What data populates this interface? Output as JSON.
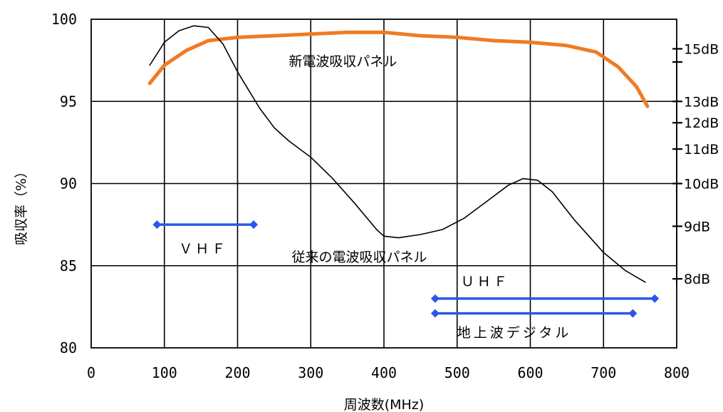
{
  "chart_data": {
    "type": "line",
    "title": "",
    "xlabel": "周波数(MHz)",
    "ylabel": "吸収率（%）",
    "xlim": [
      0,
      800
    ],
    "ylim": [
      80,
      100
    ],
    "x_ticks": [
      "0",
      "100",
      "200",
      "300",
      "400",
      "500",
      "600",
      "700",
      "800"
    ],
    "y_ticks": [
      "80",
      "85",
      "90",
      "95",
      "100"
    ],
    "grid": true,
    "series": [
      {
        "name": "新電波吸収パネル",
        "color": "#f07b22",
        "points": [
          [
            80,
            96.1
          ],
          [
            100,
            97.2
          ],
          [
            130,
            98.1
          ],
          [
            160,
            98.7
          ],
          [
            200,
            98.9
          ],
          [
            250,
            99.0
          ],
          [
            300,
            99.1
          ],
          [
            350,
            99.2
          ],
          [
            400,
            99.2
          ],
          [
            450,
            99.0
          ],
          [
            500,
            98.9
          ],
          [
            550,
            98.7
          ],
          [
            600,
            98.6
          ],
          [
            650,
            98.4
          ],
          [
            690,
            98.0
          ],
          [
            720,
            97.1
          ],
          [
            745,
            95.9
          ],
          [
            760,
            94.7
          ]
        ]
      },
      {
        "name": "従来の電波吸収パネル",
        "color": "#000000",
        "points": [
          [
            80,
            97.2
          ],
          [
            100,
            98.6
          ],
          [
            120,
            99.3
          ],
          [
            140,
            99.6
          ],
          [
            160,
            99.5
          ],
          [
            180,
            98.5
          ],
          [
            200,
            96.8
          ],
          [
            230,
            94.6
          ],
          [
            250,
            93.4
          ],
          [
            270,
            92.6
          ],
          [
            300,
            91.6
          ],
          [
            330,
            90.3
          ],
          [
            360,
            88.8
          ],
          [
            390,
            87.2
          ],
          [
            400,
            86.8
          ],
          [
            420,
            86.7
          ],
          [
            450,
            86.9
          ],
          [
            480,
            87.2
          ],
          [
            510,
            87.9
          ],
          [
            540,
            88.9
          ],
          [
            570,
            89.9
          ],
          [
            590,
            90.3
          ],
          [
            610,
            90.2
          ],
          [
            630,
            89.5
          ],
          [
            660,
            87.8
          ],
          [
            700,
            85.8
          ],
          [
            730,
            84.7
          ],
          [
            757,
            84.0
          ]
        ]
      }
    ],
    "right_axis": {
      "labels": [
        {
          "text": "15dB",
          "y": 98.2
        },
        {
          "text": "13dB",
          "y": 95.0
        },
        {
          "text": "12dB",
          "y": 93.7
        },
        {
          "text": "11dB",
          "y": 92.1
        },
        {
          "text": "10dB",
          "y": 90.0
        },
        {
          "text": "9dB",
          "y": 87.4
        },
        {
          "text": "8dB",
          "y": 84.2
        }
      ],
      "extra_ticks": [
        97.4
      ]
    },
    "bands": [
      {
        "label": "ＶＨＦ",
        "x": [
          90,
          222
        ],
        "y": 87.5,
        "color": "#2b57e8",
        "label_pos": [
          120,
          86.1
        ]
      },
      {
        "label": "ＵＨＦ",
        "x": [
          470,
          770
        ],
        "y": 83.0,
        "color": "#2b57e8",
        "label_pos": [
          505,
          84.1
        ]
      },
      {
        "label": "地上波デジタル",
        "x": [
          470,
          740
        ],
        "y": 82.1,
        "color": "#2b57e8",
        "label_pos": [
          500,
          81.0
        ]
      }
    ],
    "annotations": [
      {
        "text": "新電波吸収パネル",
        "x": 270,
        "y": 97.5
      },
      {
        "text": "従来の電波吸収パネル",
        "x": 274,
        "y": 85.6
      }
    ]
  }
}
